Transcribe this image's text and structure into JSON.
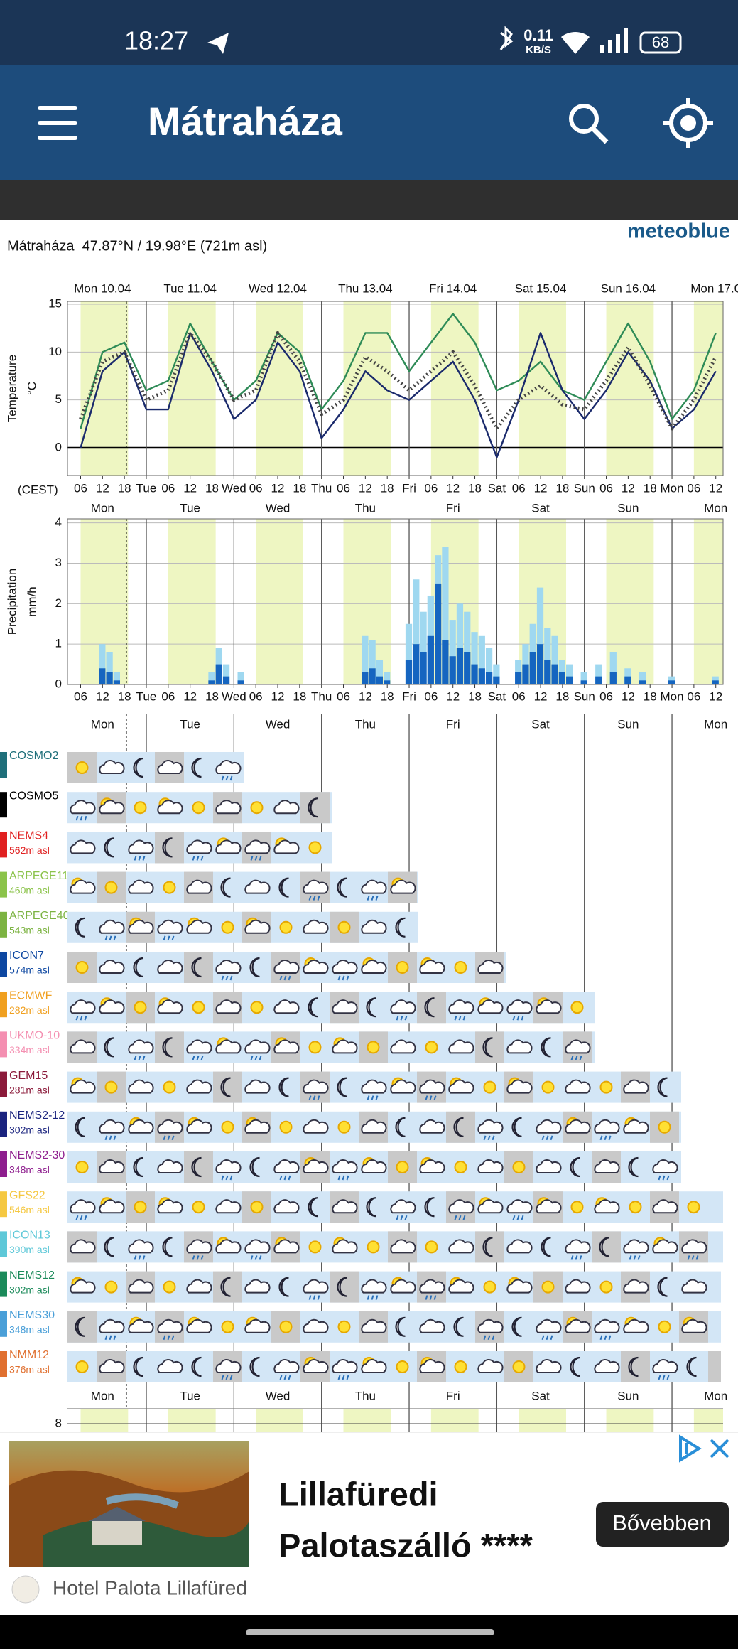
{
  "status_bar": {
    "time": "18:27",
    "net_speed": "0.11",
    "net_unit": "KB/S",
    "battery": "68"
  },
  "app_bar": {
    "title": "Mátraháza"
  },
  "header": {
    "brand": "meteoblue",
    "location": "Mátraháza  47.87°N / 19.98°E (721m asl)"
  },
  "chart_data": [
    {
      "type": "line",
      "y_label": "Temperature",
      "y_unit": "°C",
      "timezone": "(CEST)",
      "day_labels": [
        "Mon 10.04",
        "Tue 11.04",
        "Wed 12.04",
        "Thu 13.04",
        "Fri 14.04",
        "Sat 15.04",
        "Sun 16.04",
        "Mon 17.0"
      ],
      "x": [
        6,
        12,
        18,
        24,
        30,
        36,
        42,
        48,
        54,
        60,
        66,
        72,
        78,
        84,
        90,
        96,
        102,
        108,
        114,
        120,
        126,
        132,
        138,
        144,
        150,
        156,
        162,
        168,
        174,
        180
      ],
      "xlim": [
        2.4,
        182
      ],
      "xticks": [
        {
          "value": 6,
          "label": "06"
        },
        {
          "value": 12,
          "label": "12"
        },
        {
          "value": 18,
          "label": "18"
        },
        {
          "value": 24,
          "label": "Tue"
        },
        {
          "value": 30,
          "label": "06"
        },
        {
          "value": 36,
          "label": "12"
        },
        {
          "value": 42,
          "label": "18"
        },
        {
          "value": 48,
          "label": "Wed"
        },
        {
          "value": 54,
          "label": "06"
        },
        {
          "value": 60,
          "label": "12"
        },
        {
          "value": 66,
          "label": "18"
        },
        {
          "value": 72,
          "label": "Thu"
        },
        {
          "value": 78,
          "label": "06"
        },
        {
          "value": 84,
          "label": "12"
        },
        {
          "value": 90,
          "label": "18"
        },
        {
          "value": 96,
          "label": "Fri"
        },
        {
          "value": 102,
          "label": "06"
        },
        {
          "value": 108,
          "label": "12"
        },
        {
          "value": 114,
          "label": "18"
        },
        {
          "value": 120,
          "label": "Sat"
        },
        {
          "value": 126,
          "label": "06"
        },
        {
          "value": 132,
          "label": "12"
        },
        {
          "value": 138,
          "label": "18"
        },
        {
          "value": 144,
          "label": "Sun"
        },
        {
          "value": 150,
          "label": "06"
        },
        {
          "value": 156,
          "label": "12"
        },
        {
          "value": 162,
          "label": "18"
        },
        {
          "value": 168,
          "label": "Mon"
        },
        {
          "value": 174,
          "label": "06"
        },
        {
          "value": 180,
          "label": "12"
        }
      ],
      "ylim": [
        -2.9,
        15.3
      ],
      "yticks": [
        0,
        5,
        10,
        15
      ],
      "series": [
        {
          "color": "#2e8b57",
          "values": [
            2,
            10,
            11,
            6,
            7,
            13,
            9,
            5,
            7,
            12,
            10,
            4,
            7,
            12,
            12,
            8,
            11,
            14,
            11,
            6,
            7,
            9,
            6,
            5,
            9,
            13,
            9,
            3,
            6,
            12
          ]
        },
        {
          "color": "#1a2a6c",
          "values": [
            0,
            8,
            10,
            4,
            4,
            12,
            8,
            3,
            5,
            11,
            8,
            1,
            4,
            8,
            6,
            5,
            7,
            9,
            5,
            -1,
            5,
            12,
            6,
            3,
            6,
            10,
            7,
            2,
            4,
            8
          ]
        },
        {
          "color": "#444444",
          "dotted": true,
          "values": [
            3,
            9,
            10,
            5,
            6,
            12,
            9,
            5,
            6,
            12,
            9,
            3.5,
            5,
            9.5,
            8,
            6,
            8,
            10,
            6.5,
            2,
            5,
            6.5,
            4.5,
            4,
            7,
            10.5,
            6.5,
            2,
            5,
            9.5
          ]
        }
      ]
    },
    {
      "type": "bar",
      "y_label": "Precipitation",
      "y_unit": "mm/h",
      "day_labels": [
        "Mon",
        "Tue",
        "Wed",
        "Thu",
        "Fri",
        "Sat",
        "Sun",
        "Mon"
      ],
      "x": [
        12,
        14,
        16,
        42,
        44,
        46,
        50,
        84,
        86,
        88,
        90,
        96,
        98,
        100,
        102,
        104,
        106,
        108,
        110,
        112,
        114,
        116,
        118,
        120,
        126,
        128,
        130,
        132,
        134,
        136,
        138,
        140,
        144,
        148,
        152,
        156,
        160,
        168,
        180
      ],
      "xlim": [
        2.4,
        182
      ],
      "xticks": [
        {
          "value": 6,
          "label": "06"
        },
        {
          "value": 12,
          "label": "12"
        },
        {
          "value": 18,
          "label": "18"
        },
        {
          "value": 24,
          "label": "Tue"
        },
        {
          "value": 30,
          "label": "06"
        },
        {
          "value": 36,
          "label": "12"
        },
        {
          "value": 42,
          "label": "18"
        },
        {
          "value": 48,
          "label": "Wed"
        },
        {
          "value": 54,
          "label": "06"
        },
        {
          "value": 60,
          "label": "12"
        },
        {
          "value": 66,
          "label": "18"
        },
        {
          "value": 72,
          "label": "Thu"
        },
        {
          "value": 78,
          "label": "06"
        },
        {
          "value": 84,
          "label": "12"
        },
        {
          "value": 90,
          "label": "18"
        },
        {
          "value": 96,
          "label": "Fri"
        },
        {
          "value": 102,
          "label": "06"
        },
        {
          "value": 108,
          "label": "12"
        },
        {
          "value": 114,
          "label": "18"
        },
        {
          "value": 120,
          "label": "Sat"
        },
        {
          "value": 126,
          "label": "06"
        },
        {
          "value": 132,
          "label": "12"
        },
        {
          "value": 138,
          "label": "18"
        },
        {
          "value": 144,
          "label": "Sun"
        },
        {
          "value": 150,
          "label": "06"
        },
        {
          "value": 156,
          "label": "12"
        },
        {
          "value": 162,
          "label": "18"
        },
        {
          "value": 168,
          "label": "Mon"
        },
        {
          "value": 174,
          "label": "06"
        },
        {
          "value": 180,
          "label": "12"
        }
      ],
      "ylim": [
        0,
        4.1
      ],
      "yticks": [
        0,
        1,
        2,
        3,
        4
      ],
      "series": [
        {
          "color": "#9fd8f0",
          "values": [
            1.0,
            0.8,
            0.3,
            0.3,
            0.9,
            0.5,
            0.3,
            1.2,
            1.1,
            0.6,
            0.3,
            1.5,
            2.6,
            1.8,
            2.2,
            3.2,
            3.4,
            1.6,
            2.0,
            1.8,
            1.3,
            1.2,
            0.9,
            0.5,
            0.6,
            1.0,
            1.5,
            2.4,
            1.4,
            1.2,
            0.6,
            0.5,
            0.3,
            0.5,
            0.8,
            0.4,
            0.3,
            0.2,
            0.2
          ]
        },
        {
          "color": "#1565c0",
          "values": [
            0.4,
            0.3,
            0.1,
            0.1,
            0.5,
            0.2,
            0.1,
            0.3,
            0.4,
            0.2,
            0.1,
            0.6,
            1.0,
            0.8,
            1.2,
            2.5,
            1.1,
            0.7,
            0.9,
            0.8,
            0.5,
            0.4,
            0.3,
            0.2,
            0.3,
            0.5,
            0.8,
            1.0,
            0.6,
            0.5,
            0.3,
            0.2,
            0.1,
            0.2,
            0.3,
            0.2,
            0.1,
            0.1,
            0.1
          ]
        }
      ]
    }
  ],
  "models": {
    "day_labels": [
      "Mon",
      "Tue",
      "Wed",
      "Thu",
      "Fri",
      "Sat",
      "Sun",
      "Mon"
    ],
    "rows": [
      {
        "name": "COSMO2",
        "color": "#1f6f7a"
      },
      {
        "name": "COSMO5",
        "color": "#000000"
      },
      {
        "name": "NEMS4",
        "elevation": "562m asl",
        "color": "#e02020"
      },
      {
        "name": "ARPEGE11",
        "elevation": "460m asl",
        "color": "#8bc34a"
      },
      {
        "name": "ARPEGE40",
        "elevation": "543m asl",
        "color": "#7cb342"
      },
      {
        "name": "ICON7",
        "elevation": "574m asl",
        "color": "#0d47a1"
      },
      {
        "name": "ECMWF",
        "elevation": "282m asl",
        "color": "#f0a020"
      },
      {
        "name": "UKMO-10",
        "elevation": "334m asl",
        "color": "#f48fb1"
      },
      {
        "name": "GEM15",
        "elevation": "281m asl",
        "color": "#8b1a3a"
      },
      {
        "name": "NEMS2-12",
        "elevation": "302m asl",
        "color": "#1a237e"
      },
      {
        "name": "NEMS2-30",
        "elevation": "348m asl",
        "color": "#8e1e8e"
      },
      {
        "name": "GFS22",
        "elevation": "546m asl",
        "color": "#f5c842"
      },
      {
        "name": "ICON13",
        "elevation": "390m asl",
        "color": "#5ec8d8"
      },
      {
        "name": "NEMS12",
        "elevation": "302m asl",
        "color": "#1b8a5a"
      },
      {
        "name": "NEMS30",
        "elevation": "348m asl",
        "color": "#4a9fd8"
      },
      {
        "name": "NMM12",
        "elevation": "376m asl",
        "color": "#e07030"
      }
    ]
  },
  "lower_chart": {
    "day_labels": [
      "Mon",
      "Tue",
      "Wed",
      "Thu",
      "Fri",
      "Sat",
      "Sun",
      "Mon"
    ],
    "yticks": [
      8
    ]
  },
  "ad": {
    "title_line1": "Lillafüredi",
    "title_line2": "Palotaszálló ****",
    "button": "Bővebben",
    "advertiser": "Hotel Palota Lillafüred"
  }
}
